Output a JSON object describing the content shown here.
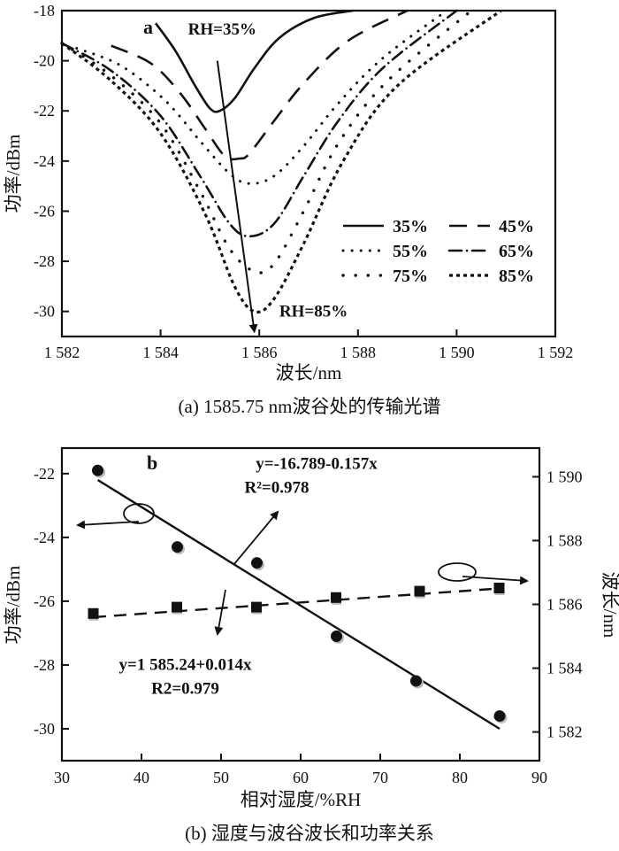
{
  "chart_data": [
    {
      "type": "line",
      "panel_label": "a",
      "xlabel": "波长/nm",
      "ylabel": "功率/dBm",
      "xlim": [
        1582,
        1592
      ],
      "ylim": [
        -31,
        -18
      ],
      "xticks": [
        1582,
        1584,
        1586,
        1588,
        1590,
        1592
      ],
      "xtick_labels": [
        "1 582",
        "1 584",
        "1 586",
        "1 588",
        "1 590",
        "1 592"
      ],
      "yticks": [
        -30,
        -28,
        -26,
        -24,
        -22,
        -20,
        -18
      ],
      "ytick_labels": [
        "-30",
        "-28",
        "-26",
        "-24",
        "-22",
        "-20",
        "-18"
      ],
      "legend_position": "lower-right",
      "series": [
        {
          "name": "35%",
          "style": "solid",
          "x": [
            1583.9,
            1584.3,
            1584.7,
            1585.0,
            1585.2,
            1585.5,
            1585.9,
            1586.4,
            1587.1,
            1587.9
          ],
          "y": [
            -18.5,
            -19.6,
            -21.0,
            -21.9,
            -22.0,
            -21.5,
            -20.3,
            -19.1,
            -18.3,
            -18.0
          ]
        },
        {
          "name": "45%",
          "style": "dash",
          "x": [
            1583.0,
            1583.8,
            1584.4,
            1584.9,
            1585.3,
            1585.6,
            1585.8,
            1586.3,
            1586.9,
            1587.8,
            1589.0
          ],
          "y": [
            -19.4,
            -20.1,
            -21.3,
            -22.7,
            -23.8,
            -23.9,
            -23.7,
            -22.4,
            -20.9,
            -19.2,
            -18.0
          ]
        },
        {
          "name": "55%",
          "style": "dots-sparse",
          "x": [
            1582.3,
            1583.2,
            1584.1,
            1584.8,
            1585.4,
            1585.8,
            1586.3,
            1586.9,
            1587.6,
            1588.5,
            1589.8
          ],
          "y": [
            -19.5,
            -20.2,
            -21.6,
            -23.2,
            -24.5,
            -24.9,
            -24.6,
            -23.4,
            -21.7,
            -19.9,
            -18.0
          ]
        },
        {
          "name": "65%",
          "style": "dashdot",
          "x": [
            1582.0,
            1583.0,
            1584.0,
            1584.8,
            1585.4,
            1585.8,
            1586.3,
            1586.9,
            1587.6,
            1588.5,
            1590.0
          ],
          "y": [
            -19.3,
            -20.4,
            -22.2,
            -24.6,
            -26.5,
            -27.0,
            -26.5,
            -24.6,
            -22.4,
            -20.3,
            -18.0
          ]
        },
        {
          "name": "75%",
          "style": "dots",
          "x": [
            1582.0,
            1583.0,
            1584.0,
            1584.8,
            1585.4,
            1585.9,
            1586.3,
            1586.9,
            1587.6,
            1588.6,
            1590.3
          ],
          "y": [
            -19.3,
            -20.6,
            -22.5,
            -25.2,
            -27.5,
            -28.4,
            -28.1,
            -26.0,
            -23.3,
            -20.8,
            -18.0
          ]
        },
        {
          "name": "85%",
          "style": "short-dash",
          "x": [
            1582.0,
            1583.0,
            1584.0,
            1584.9,
            1585.5,
            1585.9,
            1586.3,
            1586.9,
            1587.7,
            1588.8,
            1590.9
          ],
          "y": [
            -19.3,
            -20.8,
            -22.9,
            -26.1,
            -29.0,
            -30.0,
            -29.5,
            -27.3,
            -24.0,
            -21.0,
            -18.0
          ]
        }
      ],
      "annotations": [
        {
          "text": "RH=35%",
          "x": 1585.25,
          "y": -18.95
        },
        {
          "text": "RH=85%",
          "x": 1587.1,
          "y": -30.2
        }
      ],
      "arrow": {
        "from": [
          1585.15,
          -20.0
        ],
        "to": [
          1585.9,
          -30.8
        ]
      }
    },
    {
      "type": "scatter",
      "panel_label": "b",
      "xlabel": "相对湿度/%RH",
      "ylabel_left": "功率/dBm",
      "ylabel_right": "波长/nm",
      "xlim": [
        30,
        90
      ],
      "ylim_left": [
        -31,
        -21.2
      ],
      "ylim_right": [
        1581.1,
        1590.9
      ],
      "xticks": [
        30,
        40,
        50,
        60,
        70,
        80,
        90
      ],
      "xtick_labels": [
        "30",
        "40",
        "50",
        "60",
        "70",
        "80",
        "90"
      ],
      "yticks_left": [
        -30,
        -28,
        -26,
        -24,
        -22
      ],
      "ytick_labels_left": [
        "-30",
        "-28",
        "-26",
        "-24",
        "-22"
      ],
      "yticks_right": [
        1582,
        1584,
        1586,
        1588,
        1590
      ],
      "ytick_labels_right": [
        "1 582",
        "1 584",
        "1 586",
        "1 588",
        "1 590"
      ],
      "series": [
        {
          "name": "power",
          "marker": "circle",
          "axis": "left",
          "x": [
            34.5,
            44.5,
            54.5,
            64.5,
            74.5,
            85
          ],
          "y": [
            -21.9,
            -24.3,
            -24.8,
            -27.1,
            -28.5,
            -29.6
          ]
        },
        {
          "name": "wavelength",
          "marker": "square",
          "axis": "right",
          "x": [
            34,
            44.5,
            54.5,
            64.5,
            75,
            85
          ],
          "y": [
            1585.7,
            1585.9,
            1585.9,
            1586.2,
            1586.4,
            1586.5
          ]
        }
      ],
      "fits": [
        {
          "axis": "left",
          "style": "solid",
          "x": [
            34.5,
            85
          ],
          "y": [
            -22.2,
            -30.0
          ]
        },
        {
          "axis": "right",
          "style": "dash",
          "x": [
            34,
            85
          ],
          "y": [
            1585.6,
            1586.5
          ]
        }
      ],
      "annotations": [
        {
          "text": "y=-16.789-0.157x",
          "x": 62,
          "y": -21.85
        },
        {
          "text": "R²=0.978",
          "x": 57,
          "y": -22.6
        },
        {
          "text": "y=1 585.24+0.014x",
          "x": 45.5,
          "y": -28.15
        },
        {
          "text": "R2=0.979",
          "x": 45.5,
          "y": -28.9
        }
      ]
    }
  ],
  "captions": {
    "a": "(a) 1585.75 nm波谷处的传输光谱",
    "b": "(b) 湿度与波谷波长和功率关系"
  }
}
